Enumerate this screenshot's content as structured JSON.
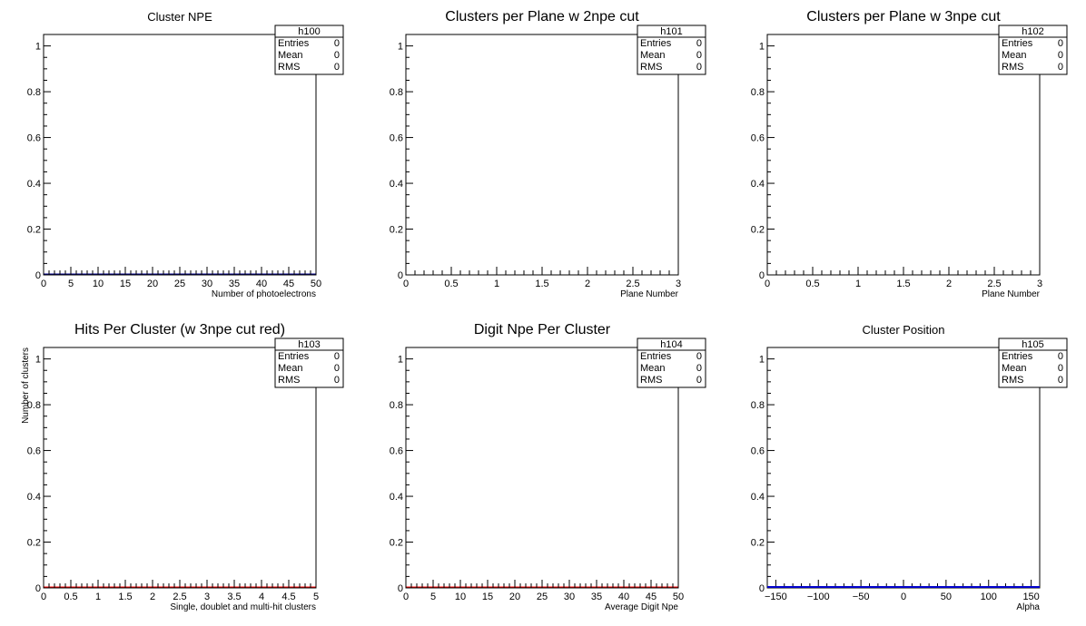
{
  "chart_data": [
    {
      "type": "histogram",
      "title": "Cluster NPE",
      "title_size": "small",
      "xlabel": "Number of photoelectrons",
      "ylabel": "",
      "xlim": [
        0,
        50
      ],
      "ylim": [
        0,
        1.05
      ],
      "xticks": [
        "0",
        "5",
        "10",
        "15",
        "20",
        "25",
        "30",
        "35",
        "40",
        "45",
        "50"
      ],
      "yticks": [
        "0",
        "0.2",
        "0.4",
        "0.6",
        "0.8",
        "1"
      ],
      "x_minor_per_major": 5,
      "bins": 50,
      "series": [
        {
          "values_all_zero": true,
          "color": "#00008b"
        }
      ],
      "stats": {
        "name": "h100",
        "rows": [
          [
            "Entries",
            "0"
          ],
          [
            "Mean",
            "0"
          ],
          [
            "RMS",
            "0"
          ]
        ]
      }
    },
    {
      "type": "histogram",
      "title": "Clusters per Plane w 2npe cut",
      "title_size": "large",
      "xlabel": "Plane Number",
      "ylabel": "",
      "xlim": [
        0,
        3
      ],
      "ylim": [
        0,
        1.05
      ],
      "xticks": [
        "0",
        "0.5",
        "1",
        "1.5",
        "2",
        "2.5",
        "3"
      ],
      "yticks": [
        "0",
        "0.2",
        "0.4",
        "0.6",
        "0.8",
        "1"
      ],
      "x_minor_per_major": 5,
      "bins": 0,
      "series": [],
      "stats": {
        "name": "h101",
        "rows": [
          [
            "Entries",
            "0"
          ],
          [
            "Mean",
            "0"
          ],
          [
            "RMS",
            "0"
          ]
        ]
      }
    },
    {
      "type": "histogram",
      "title": "Clusters per Plane w 3npe cut",
      "title_size": "large",
      "xlabel": "Plane Number",
      "ylabel": "",
      "xlim": [
        0,
        3
      ],
      "ylim": [
        0,
        1.05
      ],
      "xticks": [
        "0",
        "0.5",
        "1",
        "1.5",
        "2",
        "2.5",
        "3"
      ],
      "yticks": [
        "0",
        "0.2",
        "0.4",
        "0.6",
        "0.8",
        "1"
      ],
      "x_minor_per_major": 5,
      "bins": 0,
      "series": [],
      "stats": {
        "name": "h102",
        "rows": [
          [
            "Entries",
            "0"
          ],
          [
            "Mean",
            "0"
          ],
          [
            "RMS",
            "0"
          ]
        ]
      }
    },
    {
      "type": "histogram",
      "title": "Hits Per Cluster (w 3npe cut red)",
      "title_size": "large",
      "xlabel": "Single, doublet and multi-hit clusters",
      "ylabel": "Number of clusters",
      "xlim": [
        0,
        5
      ],
      "ylim": [
        0,
        1.05
      ],
      "xticks": [
        "0",
        "0.5",
        "1",
        "1.5",
        "2",
        "2.5",
        "3",
        "3.5",
        "4",
        "4.5",
        "5"
      ],
      "yticks": [
        "0",
        "0.2",
        "0.4",
        "0.6",
        "0.8",
        "1"
      ],
      "x_minor_per_major": 5,
      "bins": 50,
      "series": [
        {
          "values_all_zero": true,
          "color": "#ff0000"
        }
      ],
      "stats": {
        "name": "h103",
        "rows": [
          [
            "Entries",
            "0"
          ],
          [
            "Mean",
            "0"
          ],
          [
            "RMS",
            "0"
          ]
        ]
      }
    },
    {
      "type": "histogram",
      "title": "Digit Npe Per Cluster",
      "title_size": "large",
      "xlabel": "Average Digit Npe",
      "ylabel": "",
      "xlim": [
        0,
        50
      ],
      "ylim": [
        0,
        1.05
      ],
      "xticks": [
        "0",
        "5",
        "10",
        "15",
        "20",
        "25",
        "30",
        "35",
        "40",
        "45",
        "50"
      ],
      "yticks": [
        "0",
        "0.2",
        "0.4",
        "0.6",
        "0.8",
        "1"
      ],
      "x_minor_per_major": 5,
      "bins": 50,
      "series": [
        {
          "values_all_zero": true,
          "color": "#ff0000"
        }
      ],
      "stats": {
        "name": "h104",
        "rows": [
          [
            "Entries",
            "0"
          ],
          [
            "Mean",
            "0"
          ],
          [
            "RMS",
            "0"
          ]
        ]
      }
    },
    {
      "type": "histogram",
      "title": "Cluster Position",
      "title_size": "small",
      "xlabel": "Alpha",
      "ylabel": "",
      "xlim": [
        -160,
        160
      ],
      "ylim": [
        0,
        1.05
      ],
      "xticks": [
        "−150",
        "−100",
        "−50",
        "0",
        "50",
        "100",
        "150"
      ],
      "xtick_values": [
        -150,
        -100,
        -50,
        0,
        50,
        100,
        150
      ],
      "yticks": [
        "0",
        "0.2",
        "0.4",
        "0.6",
        "0.8",
        "1"
      ],
      "x_minor_per_major": 5,
      "bins": 32,
      "series": [
        {
          "values_all_zero": true,
          "color": "#0000cc",
          "solid_baseline": true
        }
      ],
      "stats": {
        "name": "h105",
        "rows": [
          [
            "Entries",
            "0"
          ],
          [
            "Mean",
            "0"
          ],
          [
            "RMS",
            "0"
          ]
        ]
      }
    }
  ]
}
